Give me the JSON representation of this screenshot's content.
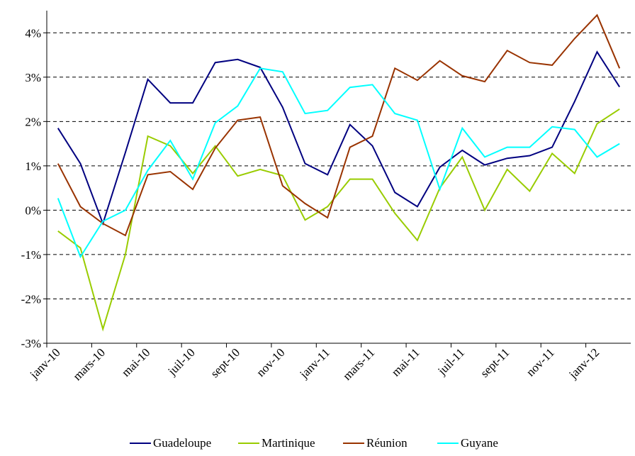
{
  "chart_data": {
    "type": "line",
    "categories": [
      "janv-10",
      null,
      "mars-10",
      null,
      "mai-10",
      null,
      "juil-10",
      null,
      "sept-10",
      null,
      "nov-10",
      null,
      "janv-11",
      null,
      "mars-11",
      null,
      "mai-11",
      null,
      "juil-11",
      null,
      "sept-11",
      null,
      "nov-11",
      null,
      "janv-12",
      null
    ],
    "series": [
      {
        "name": "Guadeloupe",
        "color": "#000080",
        "values": [
          1.85,
          1.05,
          -0.3,
          1.3,
          2.95,
          2.42,
          2.42,
          3.33,
          3.4,
          3.22,
          2.32,
          1.05,
          0.8,
          1.93,
          1.45,
          0.4,
          0.08,
          0.97,
          1.35,
          1.02,
          1.17,
          1.23,
          1.42,
          2.45,
          3.57,
          2.78
        ]
      },
      {
        "name": "Martinique",
        "color": "#99cc00",
        "values": [
          -0.47,
          -0.85,
          -2.68,
          -1.0,
          1.67,
          1.45,
          0.83,
          1.45,
          0.77,
          0.92,
          0.78,
          -0.22,
          0.08,
          0.7,
          0.7,
          -0.07,
          -0.68,
          0.5,
          1.2,
          0.0,
          0.92,
          0.43,
          1.28,
          0.83,
          1.95,
          2.28
        ]
      },
      {
        "name": "Réunion",
        "color": "#993300",
        "values": [
          1.05,
          0.08,
          -0.3,
          -0.57,
          0.8,
          0.87,
          0.47,
          1.4,
          2.03,
          2.1,
          0.55,
          0.15,
          -0.17,
          1.42,
          1.67,
          3.2,
          2.93,
          3.37,
          3.03,
          2.9,
          3.6,
          3.33,
          3.27,
          3.87,
          4.4,
          3.2
        ]
      },
      {
        "name": "Guyane",
        "color": "#00ffff",
        "values": [
          0.27,
          -1.05,
          -0.25,
          0.0,
          0.9,
          1.57,
          0.7,
          1.97,
          2.35,
          3.2,
          3.12,
          2.18,
          2.25,
          2.77,
          2.83,
          2.18,
          2.03,
          0.47,
          1.85,
          1.2,
          1.42,
          1.42,
          1.88,
          1.82,
          1.2,
          1.5
        ]
      }
    ],
    "ylim": [
      -3,
      4.5
    ],
    "yticks": [
      {
        "value": -3,
        "label": "-3%"
      },
      {
        "value": -2,
        "label": "-2%"
      },
      {
        "value": -1,
        "label": "-1%"
      },
      {
        "value": 0,
        "label": "0%"
      },
      {
        "value": 1,
        "label": "1%"
      },
      {
        "value": 2,
        "label": "2%"
      },
      {
        "value": 3,
        "label": "3%"
      },
      {
        "value": 4,
        "label": "4%"
      }
    ],
    "grid": true,
    "legend": "bottom"
  }
}
